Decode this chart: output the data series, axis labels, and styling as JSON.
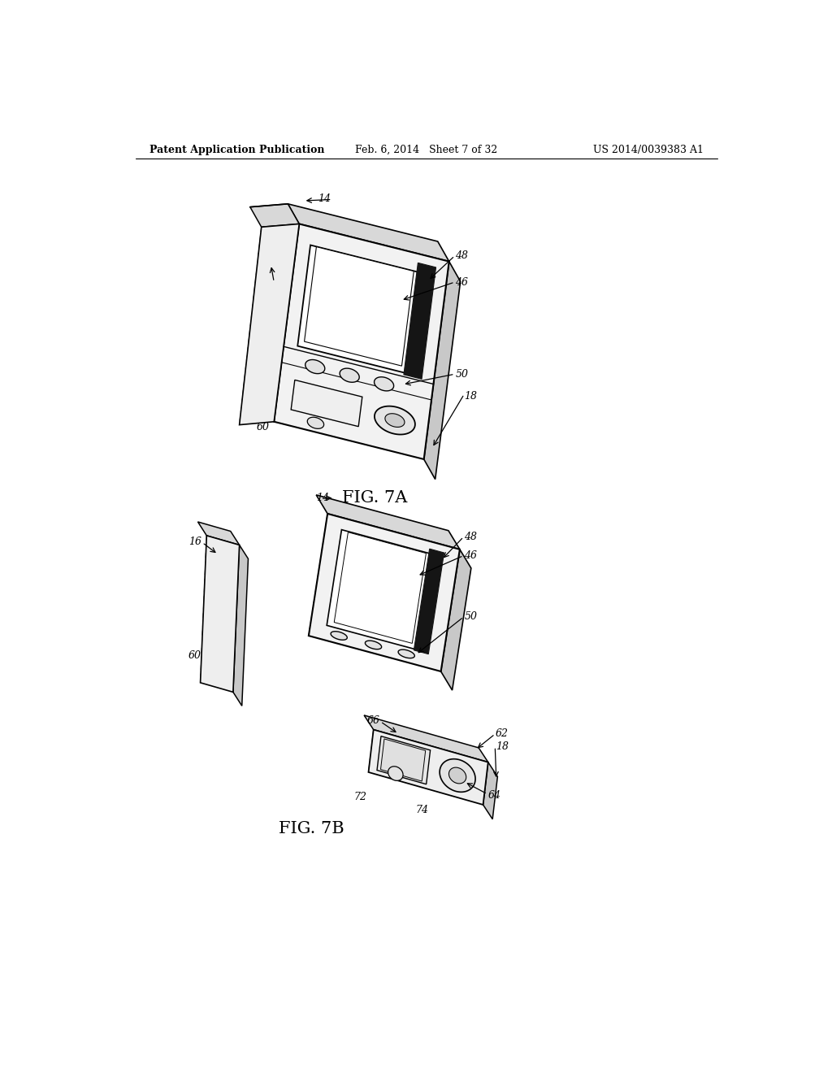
{
  "background_color": "#ffffff",
  "header_left": "Patent Application Publication",
  "header_center": "Feb. 6, 2014   Sheet 7 of 32",
  "header_right": "US 2014/0039383 A1",
  "fig7a_label": "FIG. 7A",
  "fig7b_label": "FIG. 7B",
  "line_color": "#000000",
  "dashed_color": "#666666",
  "label_color": "#000000",
  "font_size_header": 9,
  "font_size_fig_label": 15,
  "font_size_ref": 9
}
